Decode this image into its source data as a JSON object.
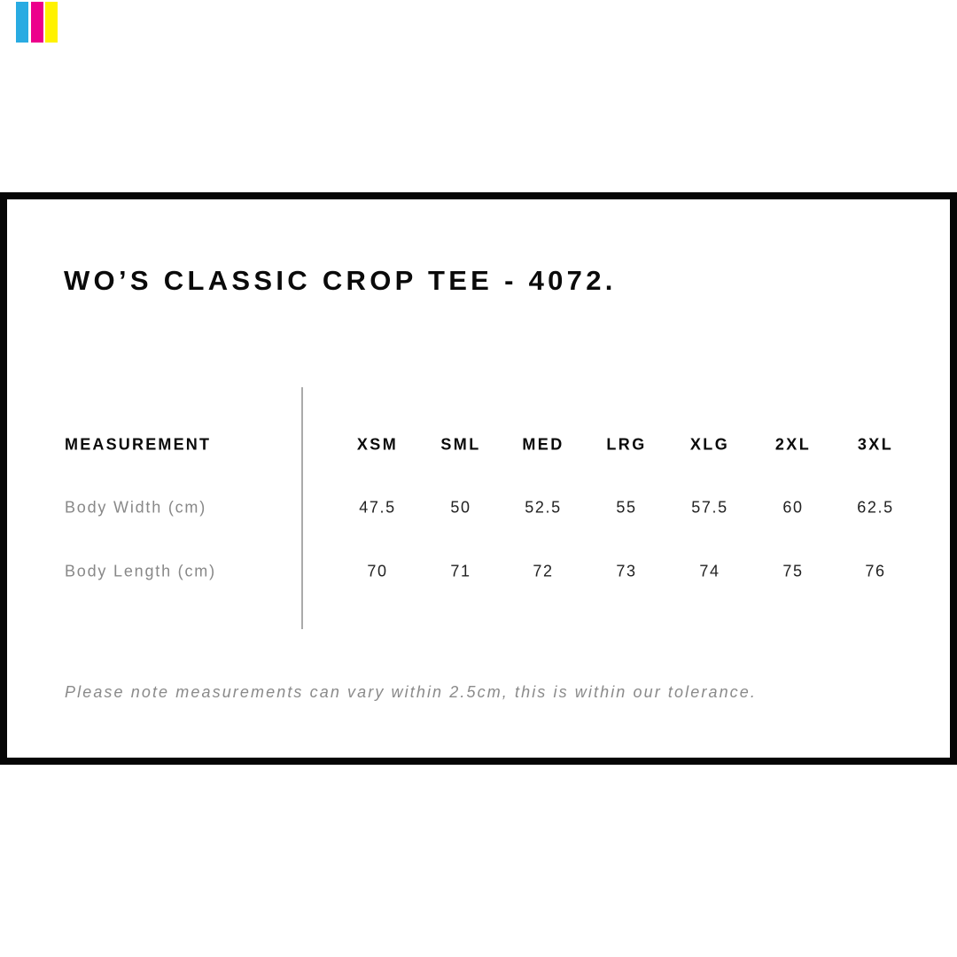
{
  "logo": {
    "colors": [
      "#29abe2",
      "#ec008c",
      "#fff200"
    ]
  },
  "title": "WO’S CLASSIC CROP TEE - 4072.",
  "table": {
    "header_label": "MEASUREMENT",
    "sizes": [
      "XSM",
      "SML",
      "MED",
      "LRG",
      "XLG",
      "2XL",
      "3XL"
    ],
    "rows": [
      {
        "label": "Body Width (cm)",
        "values": [
          "47.5",
          "50",
          "52.5",
          "55",
          "57.5",
          "60",
          "62.5"
        ]
      },
      {
        "label": "Body Length (cm)",
        "values": [
          "70",
          "71",
          "72",
          "73",
          "74",
          "75",
          "76"
        ]
      }
    ]
  },
  "note": "Please note measurements can vary within 2.5cm, this is within our tolerance."
}
